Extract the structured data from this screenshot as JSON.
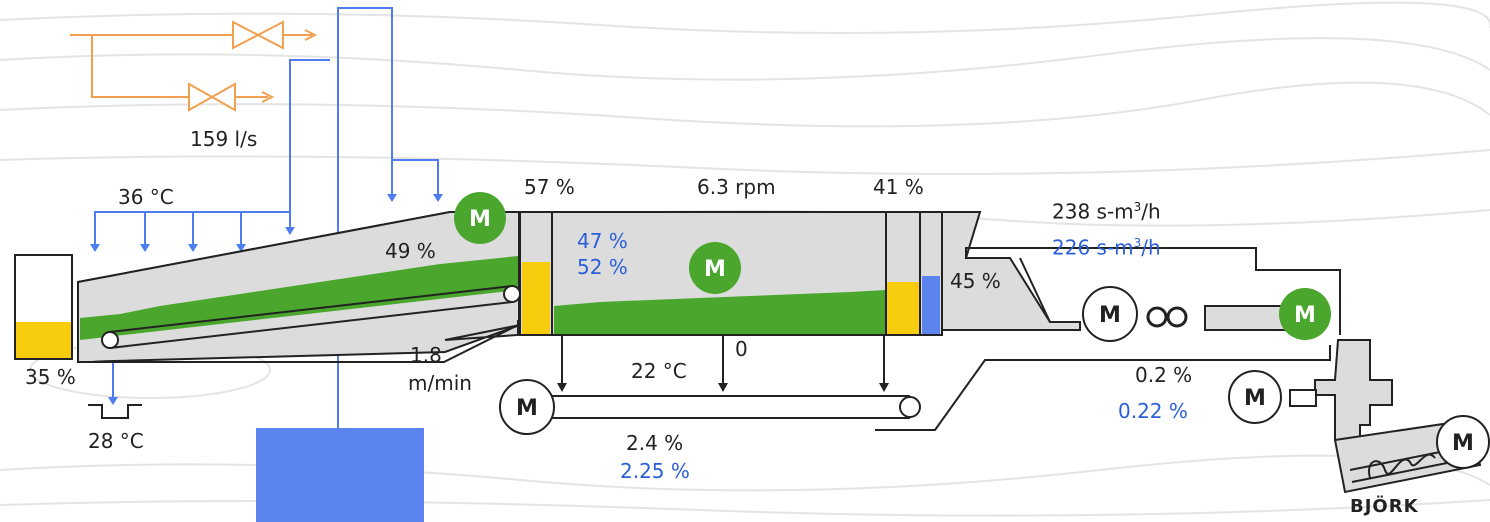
{
  "labels": {
    "flow": "159 l/s",
    "temp_inlet": "36 °C",
    "level_hopper": "35 %",
    "temp_drain": "28 °C",
    "percent_incline": "49 %",
    "speed_value": "1.8",
    "speed_unit": "m/min",
    "percent_left": "57 %",
    "rpm": "6.3 rpm",
    "percent_right": "41 %",
    "blue_a": "47 %",
    "blue_b": "52 %",
    "percent_after": "45 %",
    "temp_bottom": "22 °C",
    "zero": "0",
    "conv_black": "2.4 %",
    "conv_blue": "2.25 %",
    "air_black": "238 s-m",
    "air_blue": "226 s-m",
    "air_unit_sup": "3",
    "air_unit_tail": "/h",
    "right_black": "0.2 %",
    "right_blue": "0.22 %",
    "brand": "BJÖRK",
    "motor": "M"
  },
  "colors": {
    "pipe_blue": "#4f7cf0",
    "pipe_orange": "#f0a050",
    "green": "#4aa62c",
    "yellow": "#f7cc0c",
    "gray": "#dcdcdc",
    "tank_blue": "#5b84ee"
  }
}
